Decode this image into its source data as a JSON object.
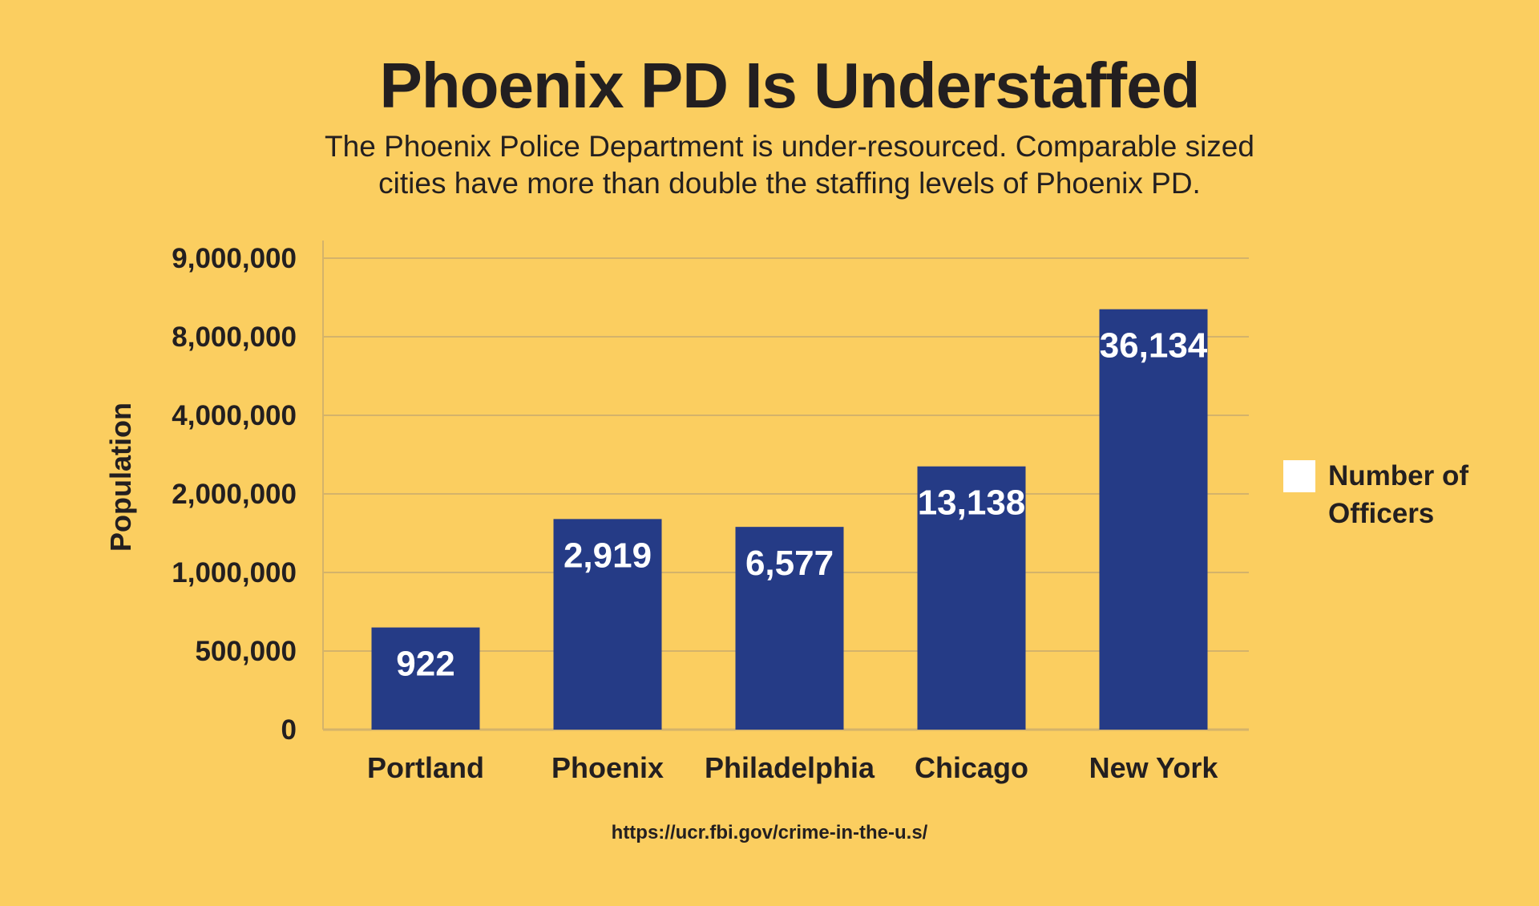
{
  "header": {
    "title": "Phoenix PD Is Understaffed",
    "subtitle": "The Phoenix Police Department is under-resourced. Comparable sized cities have more than double the staffing levels of Phoenix PD."
  },
  "legend": {
    "label": "Number of Officers",
    "swatch_color": "#ffffff"
  },
  "source": {
    "text": "https://ucr.fbi.gov/crime-in-the-u.s/"
  },
  "colors": {
    "background": "#fbce60",
    "bar": "#253b86",
    "bar_label": "#ffffff",
    "gridline": "#d4b36a",
    "text": "#231f20"
  },
  "chart_data": {
    "type": "bar",
    "title": "Phoenix PD Is Understaffed",
    "xlabel": "",
    "ylabel": "Population",
    "categories": [
      "Portland",
      "Phoenix",
      "Philadelphia",
      "Chicago",
      "New York"
    ],
    "y_ticks": [
      "0",
      "500,000",
      "1,000,000",
      "2,000,000",
      "4,000,000",
      "8,000,000",
      "9,000,000"
    ],
    "y_tick_values": [
      0,
      500000,
      1000000,
      2000000,
      4000000,
      8000000,
      9000000
    ],
    "axis_scale": "non-uniform (equally spaced tick labels)",
    "ylim": [
      0,
      9000000
    ],
    "values": [
      650000,
      1680000,
      1580000,
      2700000,
      8350000
    ],
    "series": [
      {
        "name": "Number of Officers",
        "data_labels": [
          "922",
          "2,919",
          "6,577",
          "13,138",
          "36,134"
        ]
      }
    ],
    "grid": true,
    "legend_position": "right"
  }
}
